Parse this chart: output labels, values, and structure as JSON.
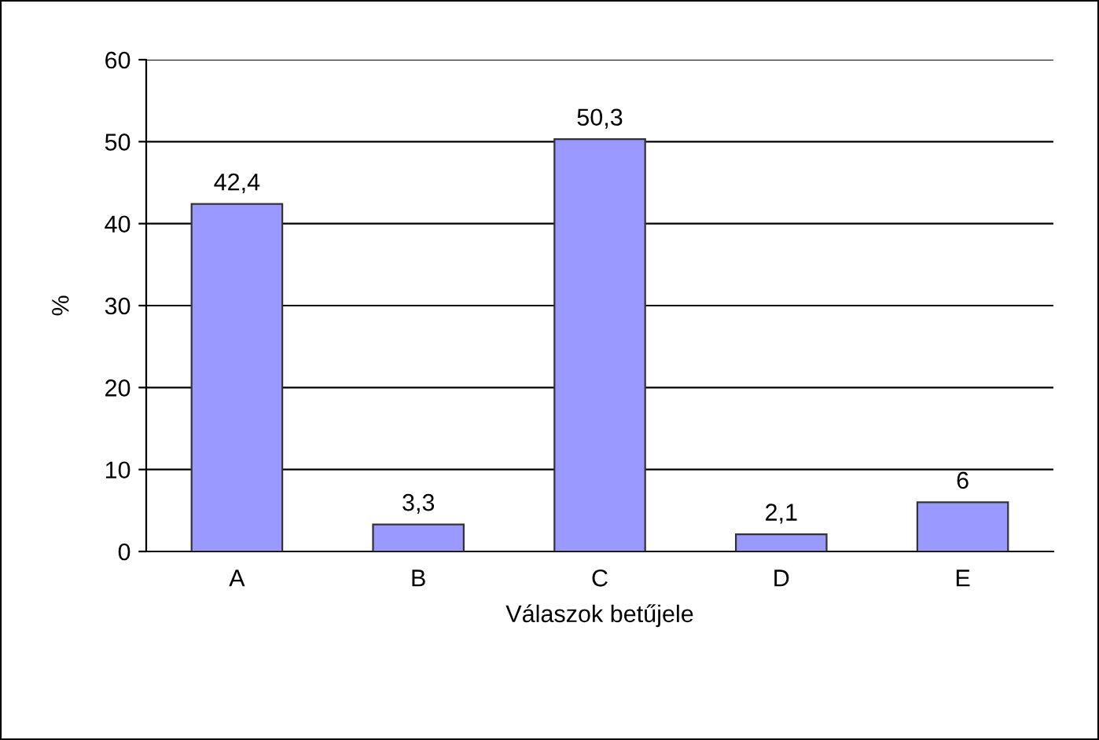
{
  "chart_data": {
    "type": "bar",
    "xlabel": "Válaszok betűjele",
    "ylabel": "%",
    "categories": [
      "A",
      "B",
      "C",
      "D",
      "E"
    ],
    "values": [
      42.4,
      3.3,
      50.3,
      2.1,
      6
    ],
    "value_labels": [
      "42,4",
      "3,3",
      "50,3",
      "2,1",
      "6"
    ],
    "color": "#9999ff",
    "ylim": [
      0,
      60
    ],
    "yticks": [
      0,
      10,
      20,
      30,
      40,
      50,
      60
    ],
    "grid": "y",
    "legend": false
  }
}
